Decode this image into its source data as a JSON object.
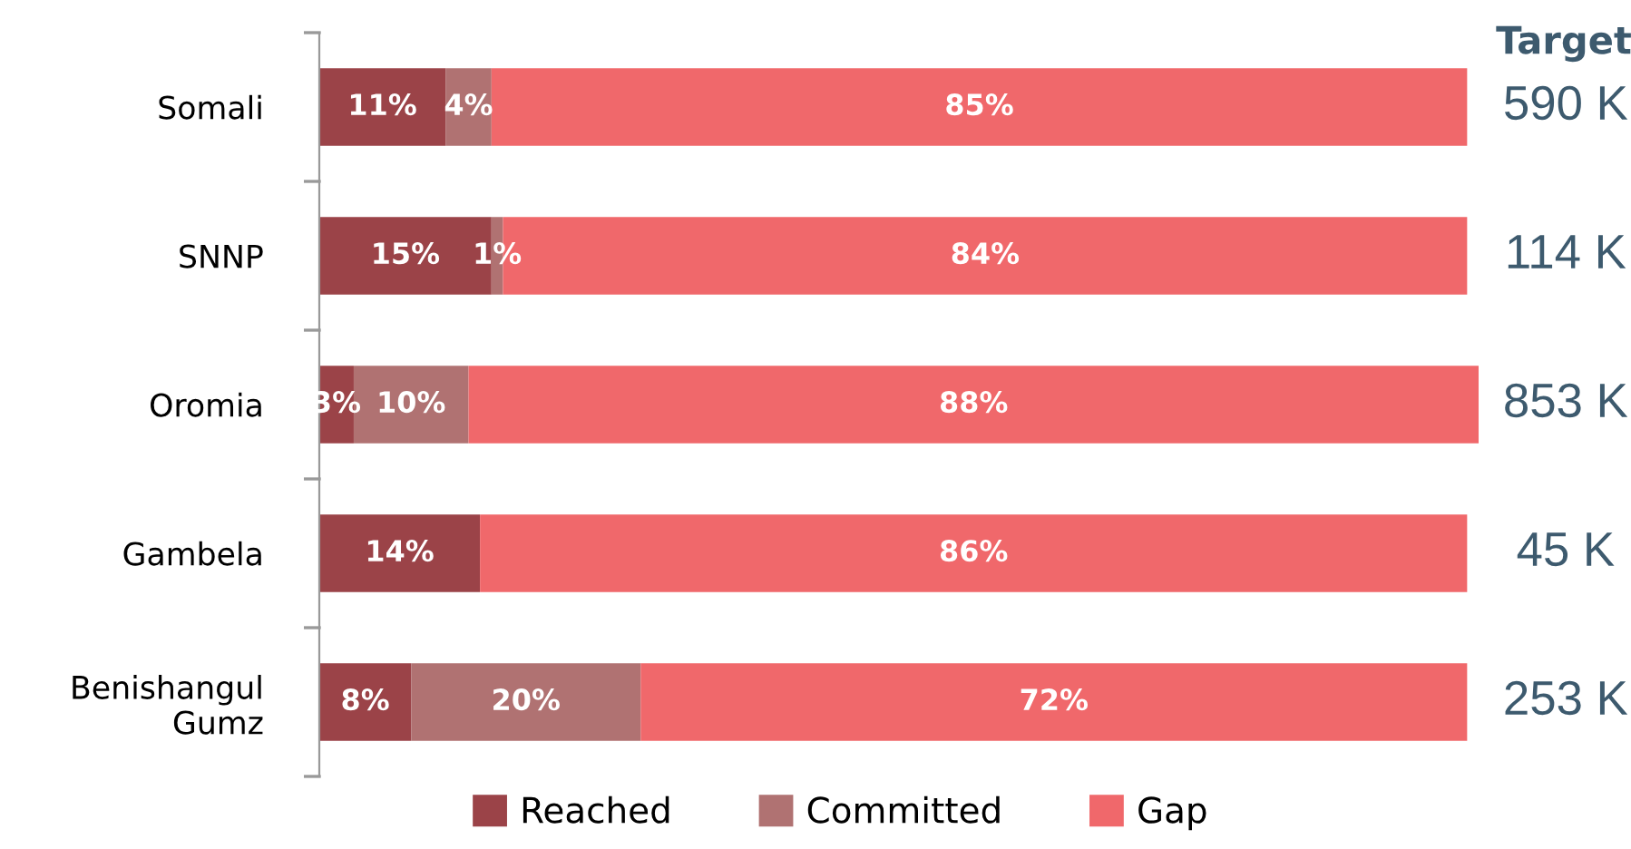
{
  "chart_data": {
    "type": "bar",
    "orientation": "horizontal",
    "stacked": true,
    "categories": [
      "Somali",
      "SNNP",
      "Oromia",
      "Gambela",
      "Benishangul\nGumz"
    ],
    "series": [
      {
        "name": "Reached",
        "color": "#9b4348",
        "values": [
          11,
          15,
          3,
          14,
          8
        ],
        "value_labels": [
          "11%",
          "15%",
          "3%",
          "14%",
          "8%"
        ]
      },
      {
        "name": "Committed",
        "color": "#b07272",
        "values": [
          4,
          1,
          10,
          null,
          20
        ],
        "value_labels": [
          "4%",
          "1%",
          "10%",
          null,
          "20%"
        ]
      },
      {
        "name": "Gap",
        "color": "#f0686b",
        "values": [
          85,
          84,
          88,
          86,
          72
        ],
        "value_labels": [
          "85%",
          "84%",
          "88%",
          "86%",
          "72%"
        ]
      }
    ],
    "tick_labels": "y",
    "legend": "bottom",
    "annotations": [
      "Target",
      "590 K",
      "114 K",
      "853 K",
      "45 K",
      "253 K"
    ]
  }
}
